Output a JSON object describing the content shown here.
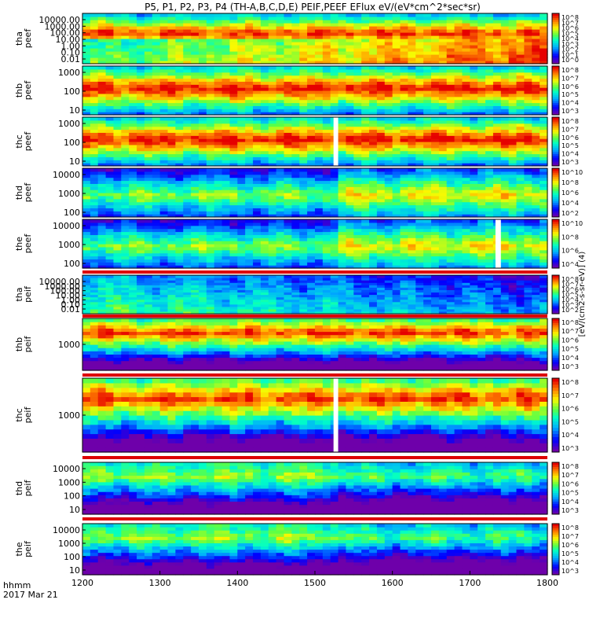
{
  "chart_data": {
    "type": "heatmap",
    "title": "P5, P1, P2, P3, P4 (TH-A,B,C,D,E) PEIF,PEEF EFlux eV/(eV*cm^2*sec*sr)",
    "x_label_line1": "hhmm",
    "x_label_line2": "2017 Mar 21",
    "x_range": [
      1200,
      1800
    ],
    "x_ticks": [
      "1200",
      "1300",
      "1400",
      "1500",
      "1600",
      "1700",
      "1800"
    ],
    "colorbar_label": "[eV/(cm2-s-sr-eV)] (4)",
    "panels": [
      {
        "id": "tha_peef",
        "ylabel": [
          "tha",
          "peef"
        ],
        "y_ticks": [
          "10000.00",
          "1000.00",
          "100.00",
          "10.00",
          "1.00",
          "0.10",
          "0.01"
        ],
        "cbar_ticks": [
          "10^8",
          "10^7",
          "10^6",
          "10^5",
          "10^4",
          "10^3",
          "10^2",
          "10^1",
          "10^0"
        ],
        "gap": null
      },
      {
        "id": "thb_peef",
        "ylabel": [
          "thb",
          "peef"
        ],
        "y_ticks": [
          "1000",
          "100",
          "10"
        ],
        "cbar_ticks": [
          "10^8",
          "10^7",
          "10^6",
          "10^5",
          "10^4",
          "10^3"
        ],
        "gap": null
      },
      {
        "id": "thc_peef",
        "ylabel": [
          "thc",
          "peef"
        ],
        "y_ticks": [
          "1000",
          "100",
          "10"
        ],
        "cbar_ticks": [
          "10^8",
          "10^7",
          "10^6",
          "10^5",
          "10^4",
          "10^3"
        ],
        "gap": [
          1524,
          1530
        ]
      },
      {
        "id": "thd_peef",
        "ylabel": [
          "thd",
          "peef"
        ],
        "y_ticks": [
          "10000",
          "1000",
          "100"
        ],
        "cbar_ticks": [
          "10^10",
          "10^8",
          "10^6",
          "10^4",
          "10^2"
        ],
        "gap": null
      },
      {
        "id": "the_peef",
        "ylabel": [
          "the",
          "peef"
        ],
        "y_ticks": [
          "10000",
          "1000",
          "100"
        ],
        "cbar_ticks": [
          "10^10",
          "10^8",
          "10^6",
          "10^4"
        ],
        "gap": [
          1733,
          1740
        ]
      },
      {
        "id": "tha_peif",
        "ylabel": [
          "tha",
          "peif"
        ],
        "y_ticks": [
          "10000.00",
          "1000.00",
          "100.00",
          "10.00",
          "1.00",
          "0.10",
          "0.01"
        ],
        "cbar_ticks": [
          "10^8",
          "10^7",
          "10^6",
          "10^5",
          "10^4",
          "10^3",
          "10^2"
        ],
        "gap": null
      },
      {
        "id": "thb_peif",
        "ylabel": [
          "thb",
          "peif"
        ],
        "y_ticks": [
          "1000"
        ],
        "cbar_ticks": [
          "10^8",
          "10^7",
          "10^6",
          "10^5",
          "10^4",
          "10^3"
        ],
        "gap": null
      },
      {
        "id": "thc_peif",
        "ylabel": [
          "thc",
          "peif"
        ],
        "y_ticks": [
          "1000"
        ],
        "cbar_ticks": [
          "10^8",
          "10^7",
          "10^6",
          "10^5",
          "10^4",
          "10^3"
        ],
        "gap": [
          1524,
          1530
        ]
      },
      {
        "id": "thd_peif",
        "ylabel": [
          "thd",
          "peif"
        ],
        "y_ticks": [
          "10000",
          "1000",
          "100",
          "10"
        ],
        "cbar_ticks": [
          "10^8",
          "10^7",
          "10^6",
          "10^5",
          "10^4",
          "10^3"
        ],
        "gap": null
      },
      {
        "id": "the_peif",
        "ylabel": [
          "the",
          "peif"
        ],
        "y_ticks": [
          "10000",
          "1000",
          "100",
          "10"
        ],
        "cbar_ticks": [
          "10^8",
          "10^7",
          "10^6",
          "10^5",
          "10^4",
          "10^3"
        ],
        "gap": null
      }
    ]
  },
  "colors": {
    "frame": "#000000",
    "gap": "#ffffff",
    "flag_bar": "#dd0000"
  }
}
